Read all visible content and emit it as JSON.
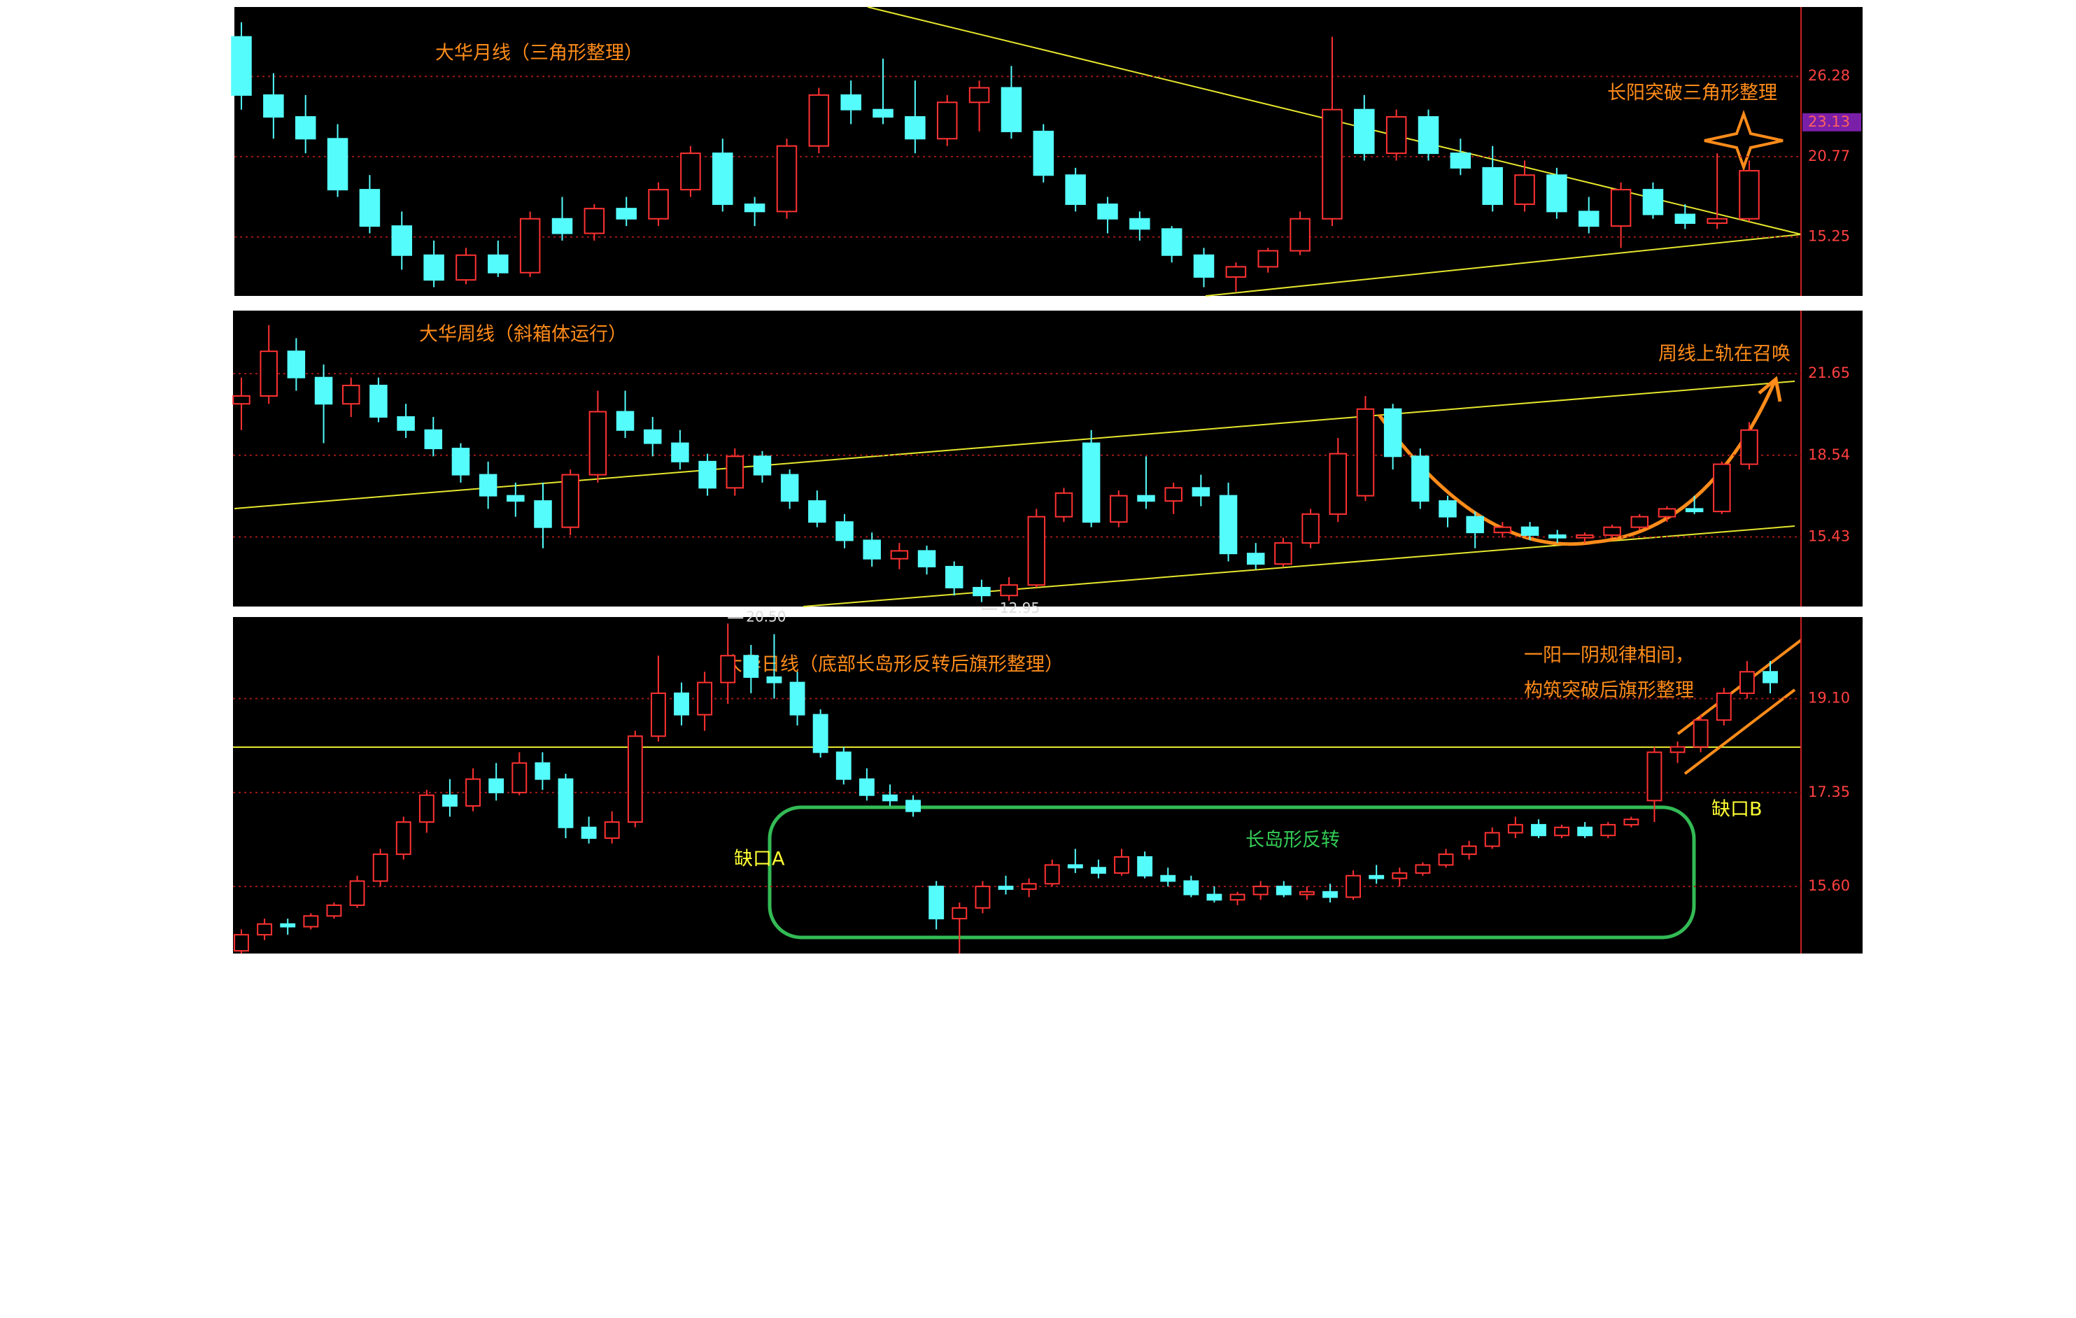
{
  "chart_data": [
    {
      "type": "candlestick",
      "title": "大华月线（三角形整理）",
      "annotations": [
        "长阳突破三角形整理"
      ],
      "ylim": [
        11.2,
        31.05
      ],
      "yticks": [
        15.25,
        20.77,
        26.28
      ],
      "price_tag": 23.13,
      "grid": true,
      "up_color": "#ff3232",
      "down_color": "#54fcfc",
      "candles": [
        [
          29,
          30,
          24,
          25
        ],
        [
          25,
          26.5,
          22,
          23.5
        ],
        [
          23.5,
          25,
          21,
          22
        ],
        [
          22,
          23,
          18,
          18.5
        ],
        [
          18.5,
          19.5,
          15.5,
          16
        ],
        [
          16,
          17,
          13,
          14
        ],
        [
          14,
          15,
          11.8,
          12.3
        ],
        [
          12.3,
          14.5,
          12,
          14
        ],
        [
          14,
          15,
          12.5,
          12.8
        ],
        [
          12.8,
          17,
          12.5,
          16.5
        ],
        [
          16.5,
          18,
          15,
          15.5
        ],
        [
          15.5,
          17.5,
          15,
          17.2
        ],
        [
          17.2,
          18,
          16,
          16.5
        ],
        [
          16.5,
          19,
          16,
          18.5
        ],
        [
          18.5,
          21.5,
          18,
          21
        ],
        [
          21,
          22,
          17,
          17.5
        ],
        [
          17.5,
          18,
          16,
          17
        ],
        [
          17,
          22,
          16.5,
          21.5
        ],
        [
          21.5,
          25.5,
          21,
          25
        ],
        [
          25,
          26,
          23,
          24
        ],
        [
          24,
          27.5,
          23,
          23.5
        ],
        [
          23.5,
          26,
          21,
          22
        ],
        [
          22,
          25,
          21.5,
          24.5
        ],
        [
          24.5,
          26,
          22.5,
          25.5
        ],
        [
          25.5,
          27,
          22,
          22.5
        ],
        [
          22.5,
          23,
          19,
          19.5
        ],
        [
          19.5,
          20,
          17,
          17.5
        ],
        [
          17.5,
          18,
          15.5,
          16.5
        ],
        [
          16.5,
          17,
          15,
          15.8
        ],
        [
          15.8,
          16,
          13.5,
          14
        ],
        [
          14,
          14.5,
          11.8,
          12.5
        ],
        [
          12.5,
          13.5,
          11.5,
          13.2
        ],
        [
          13.2,
          14.5,
          12.8,
          14.3
        ],
        [
          14.3,
          17,
          14,
          16.5
        ],
        [
          16.5,
          29,
          16,
          24
        ],
        [
          24,
          25,
          20.5,
          21
        ],
        [
          21,
          24,
          20.5,
          23.5
        ],
        [
          23.5,
          24,
          20.5,
          21
        ],
        [
          21,
          22,
          19.5,
          20
        ],
        [
          20,
          21.5,
          17,
          17.5
        ],
        [
          17.5,
          20.5,
          17,
          19.5
        ],
        [
          19.5,
          20,
          16.5,
          17
        ],
        [
          17,
          18,
          15.5,
          16
        ],
        [
          16,
          19,
          14.5,
          18.5
        ],
        [
          18.5,
          19,
          16.5,
          16.8
        ],
        [
          16.8,
          17.5,
          15.8,
          16.2
        ],
        [
          16.2,
          21,
          15.8,
          16.5
        ],
        [
          16.5,
          20.5,
          16.3,
          19.8
        ]
      ]
    },
    {
      "type": "candlestick",
      "title": "大华周线（斜箱体运行）",
      "annotations": [
        "周线上轨在召唤"
      ],
      "ylim": [
        12.78,
        24.05
      ],
      "yticks": [
        15.43,
        18.54,
        21.65
      ],
      "low_label": 12.95,
      "grid": true,
      "up_color": "#ff3232",
      "down_color": "#54fcfc",
      "candles": [
        [
          20.5,
          21.5,
          19.5,
          20.8
        ],
        [
          20.8,
          23.5,
          20.5,
          22.5
        ],
        [
          22.5,
          23,
          21,
          21.5
        ],
        [
          21.5,
          22,
          19,
          20.5
        ],
        [
          20.5,
          21.5,
          20,
          21.2
        ],
        [
          21.2,
          21.5,
          19.8,
          20
        ],
        [
          20,
          20.5,
          19.2,
          19.5
        ],
        [
          19.5,
          20,
          18.5,
          18.8
        ],
        [
          18.8,
          19,
          17.5,
          17.8
        ],
        [
          17.8,
          18.3,
          16.5,
          17
        ],
        [
          17,
          17.5,
          16.2,
          16.8
        ],
        [
          16.8,
          17.5,
          15,
          15.8
        ],
        [
          15.8,
          18,
          15.5,
          17.8
        ],
        [
          17.8,
          21,
          17.5,
          20.2
        ],
        [
          20.2,
          21,
          19.2,
          19.5
        ],
        [
          19.5,
          20,
          18.5,
          19
        ],
        [
          19,
          19.5,
          18,
          18.3
        ],
        [
          18.3,
          18.6,
          17,
          17.3
        ],
        [
          17.3,
          18.8,
          17,
          18.5
        ],
        [
          18.5,
          18.7,
          17.5,
          17.8
        ],
        [
          17.8,
          18,
          16.5,
          16.8
        ],
        [
          16.8,
          17.2,
          15.8,
          16
        ],
        [
          16,
          16.3,
          15,
          15.3
        ],
        [
          15.3,
          15.6,
          14.3,
          14.6
        ],
        [
          14.6,
          15.2,
          14.2,
          14.9
        ],
        [
          14.9,
          15.1,
          14,
          14.3
        ],
        [
          14.3,
          14.5,
          13.2,
          13.5
        ],
        [
          13.5,
          13.8,
          12.95,
          13.2
        ],
        [
          13.2,
          13.9,
          13,
          13.6
        ],
        [
          13.6,
          16.5,
          13.5,
          16.2
        ],
        [
          16.2,
          17.3,
          16,
          17.1
        ],
        [
          19,
          19.5,
          15.8,
          16
        ],
        [
          16,
          17.2,
          15.8,
          17
        ],
        [
          17,
          18.5,
          16.5,
          16.8
        ],
        [
          16.8,
          17.5,
          16.3,
          17.3
        ],
        [
          17.3,
          17.8,
          16.6,
          17
        ],
        [
          17,
          17.5,
          14.5,
          14.8
        ],
        [
          14.8,
          15.2,
          14.2,
          14.4
        ],
        [
          14.4,
          15.4,
          14.3,
          15.2
        ],
        [
          15.2,
          16.5,
          15,
          16.3
        ],
        [
          16.3,
          19.2,
          16,
          18.6
        ],
        [
          17,
          20.8,
          16.8,
          20.3
        ],
        [
          20.3,
          20.5,
          18,
          18.5
        ],
        [
          18.5,
          18.8,
          16.5,
          16.8
        ],
        [
          16.8,
          17,
          15.8,
          16.2
        ],
        [
          16.2,
          16.4,
          15,
          15.6
        ],
        [
          15.6,
          16,
          15.4,
          15.8
        ],
        [
          15.8,
          16,
          15.3,
          15.5
        ],
        [
          15.5,
          15.7,
          15.2,
          15.4
        ],
        [
          15.4,
          15.6,
          15.2,
          15.5
        ],
        [
          15.5,
          15.9,
          15.4,
          15.8
        ],
        [
          15.8,
          16.3,
          15.7,
          16.2
        ],
        [
          16.2,
          16.6,
          16,
          16.5
        ],
        [
          16.5,
          17,
          16.3,
          16.4
        ],
        [
          16.4,
          18.3,
          16.3,
          18.2
        ],
        [
          18.2,
          19.8,
          18,
          19.5
        ]
      ]
    },
    {
      "type": "candlestick",
      "title": "大华日线（底部长岛形反转后旗形整理）",
      "annotations": [
        "一阳一阴规律相间，",
        "构筑突破后旗形整理",
        "长岛形反转",
        "缺口A",
        "缺口B"
      ],
      "ylim": [
        14.35,
        20.62
      ],
      "yticks": [
        {
          "value": 15.6,
          "label": "15.60"
        },
        17.35,
        {
          "value": 19.1,
          "label": "19.10"
        }
      ],
      "high_label": {
        "value": 20.5,
        "label": "20.50"
      },
      "grid": true,
      "up_color": "#ff3232",
      "down_color": "#54fcfc",
      "candles": [
        [
          14.4,
          14.8,
          14.35,
          14.7
        ],
        [
          14.7,
          15,
          14.6,
          14.9
        ],
        [
          14.9,
          15,
          14.7,
          14.85
        ],
        [
          14.85,
          15.1,
          14.8,
          15.05
        ],
        [
          15.05,
          15.3,
          15,
          15.25
        ],
        [
          15.25,
          15.8,
          15.2,
          15.7
        ],
        [
          15.7,
          16.3,
          15.6,
          16.2
        ],
        [
          16.2,
          16.9,
          16.1,
          16.8
        ],
        [
          16.8,
          17.4,
          16.6,
          17.3
        ],
        [
          17.3,
          17.6,
          16.9,
          17.1
        ],
        [
          17.1,
          17.8,
          17,
          17.6
        ],
        [
          17.6,
          17.9,
          17.2,
          17.35
        ],
        [
          17.35,
          18.1,
          17.3,
          17.9
        ],
        [
          17.9,
          18.1,
          17.4,
          17.6
        ],
        [
          17.6,
          17.7,
          16.5,
          16.7
        ],
        [
          16.7,
          16.9,
          16.4,
          16.5
        ],
        [
          16.5,
          17,
          16.4,
          16.8
        ],
        [
          16.8,
          18.5,
          16.7,
          18.4
        ],
        [
          18.4,
          19.9,
          18.3,
          19.2
        ],
        [
          19.2,
          19.4,
          18.6,
          18.8
        ],
        [
          18.8,
          19.6,
          18.5,
          19.4
        ],
        [
          19.4,
          20.5,
          19,
          19.9
        ],
        [
          19.9,
          20.1,
          19.2,
          19.5
        ],
        [
          19.5,
          20.3,
          19.1,
          19.4
        ],
        [
          19.4,
          19.6,
          18.6,
          18.8
        ],
        [
          18.8,
          18.9,
          18,
          18.1
        ],
        [
          18.1,
          18.2,
          17.5,
          17.6
        ],
        [
          17.6,
          17.8,
          17.2,
          17.3
        ],
        [
          17.3,
          17.5,
          17.1,
          17.2
        ],
        [
          17.2,
          17.3,
          16.9,
          17
        ],
        [
          15.6,
          15.7,
          14.8,
          15
        ],
        [
          15,
          15.3,
          14.35,
          15.2
        ],
        [
          15.2,
          15.7,
          15.1,
          15.6
        ],
        [
          15.6,
          15.8,
          15.45,
          15.55
        ],
        [
          15.55,
          15.75,
          15.4,
          15.65
        ],
        [
          15.65,
          16.1,
          15.6,
          16
        ],
        [
          16,
          16.3,
          15.85,
          15.95
        ],
        [
          15.95,
          16.1,
          15.75,
          15.85
        ],
        [
          15.85,
          16.3,
          15.8,
          16.15
        ],
        [
          16.15,
          16.25,
          15.75,
          15.8
        ],
        [
          15.8,
          15.95,
          15.6,
          15.7
        ],
        [
          15.7,
          15.8,
          15.4,
          15.45
        ],
        [
          15.45,
          15.6,
          15.3,
          15.35
        ],
        [
          15.35,
          15.5,
          15.25,
          15.45
        ],
        [
          15.45,
          15.7,
          15.35,
          15.6
        ],
        [
          15.6,
          15.7,
          15.4,
          15.45
        ],
        [
          15.45,
          15.6,
          15.35,
          15.5
        ],
        [
          15.5,
          15.65,
          15.3,
          15.4
        ],
        [
          15.4,
          15.9,
          15.35,
          15.8
        ],
        [
          15.8,
          16,
          15.65,
          15.75
        ],
        [
          15.75,
          15.95,
          15.6,
          15.85
        ],
        [
          15.85,
          16.05,
          15.8,
          16
        ],
        [
          16,
          16.3,
          15.95,
          16.2
        ],
        [
          16.2,
          16.45,
          16.1,
          16.35
        ],
        [
          16.35,
          16.7,
          16.3,
          16.6
        ],
        [
          16.6,
          16.9,
          16.5,
          16.75
        ],
        [
          16.75,
          16.85,
          16.5,
          16.55
        ],
        [
          16.55,
          16.75,
          16.5,
          16.7
        ],
        [
          16.7,
          16.8,
          16.5,
          16.55
        ],
        [
          16.55,
          16.8,
          16.5,
          16.75
        ],
        [
          16.75,
          16.9,
          16.7,
          16.85
        ],
        [
          17.2,
          18.2,
          16.8,
          18.1
        ],
        [
          18.1,
          18.3,
          17.9,
          18.2
        ],
        [
          18.2,
          18.8,
          18.1,
          18.7
        ],
        [
          18.7,
          19.3,
          18.6,
          19.2
        ],
        [
          19.2,
          19.8,
          19.1,
          19.6
        ],
        [
          19.6,
          19.8,
          19.2,
          19.4
        ]
      ]
    }
  ]
}
